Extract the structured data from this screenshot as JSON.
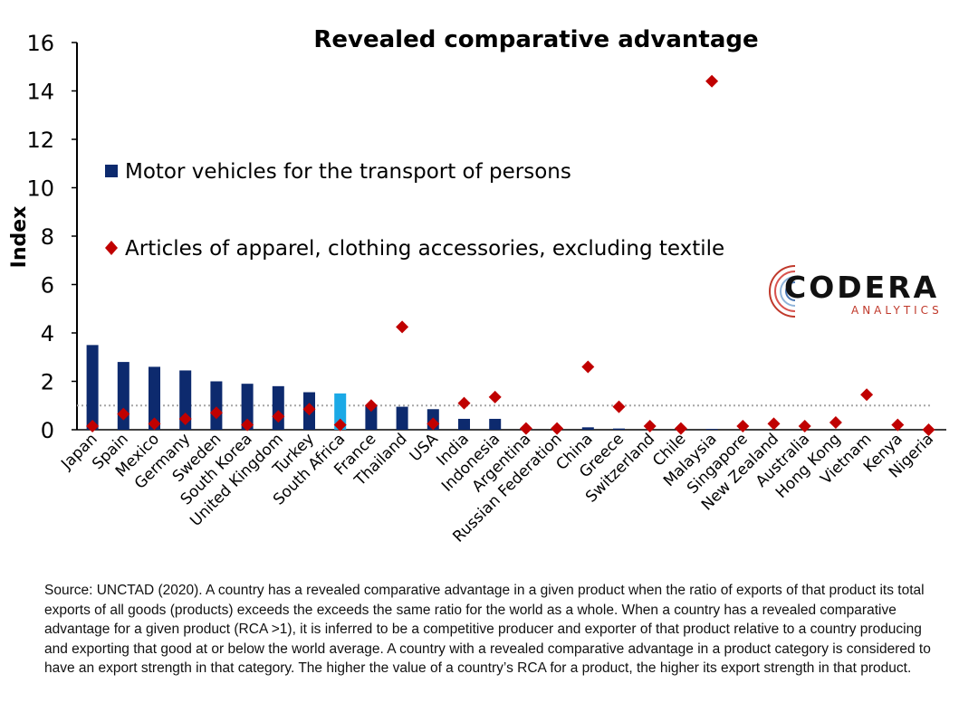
{
  "chart_data": {
    "type": "bar",
    "title": "Revealed comparative advantage",
    "xlabel": "",
    "ylabel": "Index",
    "ylim": [
      0,
      16
    ],
    "yticks": [
      0,
      2,
      4,
      6,
      8,
      10,
      12,
      14,
      16
    ],
    "grid": false,
    "legend_position": "upper-left",
    "reference_line": {
      "y": 1,
      "style": "dotted",
      "color": "#a6a6a6"
    },
    "categories": [
      "Japan",
      "Spain",
      "Mexico",
      "Germany",
      "Sweden",
      "South Korea",
      "United Kingdom",
      "Turkey",
      "South Africa",
      "France",
      "Thailand",
      "USA",
      "India",
      "Indonesia",
      "Argentina",
      "Russian Federation",
      "China",
      "Greece",
      "Switzerland",
      "Chile",
      "Malaysia",
      "Singapore",
      "New Zealand",
      "Australia",
      "Hong Kong",
      "Vietnam",
      "Kenya",
      "Nigeria"
    ],
    "highlight_category": "South Africa",
    "series": [
      {
        "name": "Motor vehicles for the transport of persons",
        "type": "bar",
        "color": "#0d2a6e",
        "highlight_color": "#1ba9e6",
        "values": [
          3.5,
          2.8,
          2.6,
          2.45,
          2.0,
          1.9,
          1.8,
          1.55,
          1.5,
          1.0,
          0.95,
          0.85,
          0.45,
          0.45,
          0.05,
          0.0,
          0.1,
          0.05,
          0.0,
          0.0,
          0.03,
          0.0,
          0.0,
          0.0,
          0.0,
          0.0,
          0.0,
          0.0
        ]
      },
      {
        "name": "Articles of apparel, clothing accessories, excluding textile",
        "type": "scatter",
        "marker": "diamond",
        "color": "#c00000",
        "values": [
          0.15,
          0.65,
          0.25,
          0.45,
          0.7,
          0.2,
          0.55,
          0.85,
          0.2,
          1.0,
          4.25,
          0.25,
          1.1,
          1.35,
          0.05,
          0.05,
          2.6,
          0.95,
          0.15,
          0.05,
          14.4,
          0.15,
          0.25,
          0.15,
          0.3,
          1.45,
          0.2,
          0.0
        ]
      }
    ]
  },
  "logo": {
    "name": "CODERA",
    "sub": "ANALYTICS"
  },
  "source_note": "Source: UNCTAD (2020). A country has a revealed comparative advantage in a given product when the ratio of exports of that product its total exports of all goods (products) exceeds the exceeds the same ratio for the world as a whole. When a country has a revealed comparative advantage for a given product (RCA >1), it is inferred to be a competitive producer and exporter of that product relative to a country producing and exporting that good at or below the world average. A country with a revealed comparative advantage in a product category is considered to have an export strength in that category. The higher the value of a country’s RCA for a product, the higher its export strength in that product."
}
